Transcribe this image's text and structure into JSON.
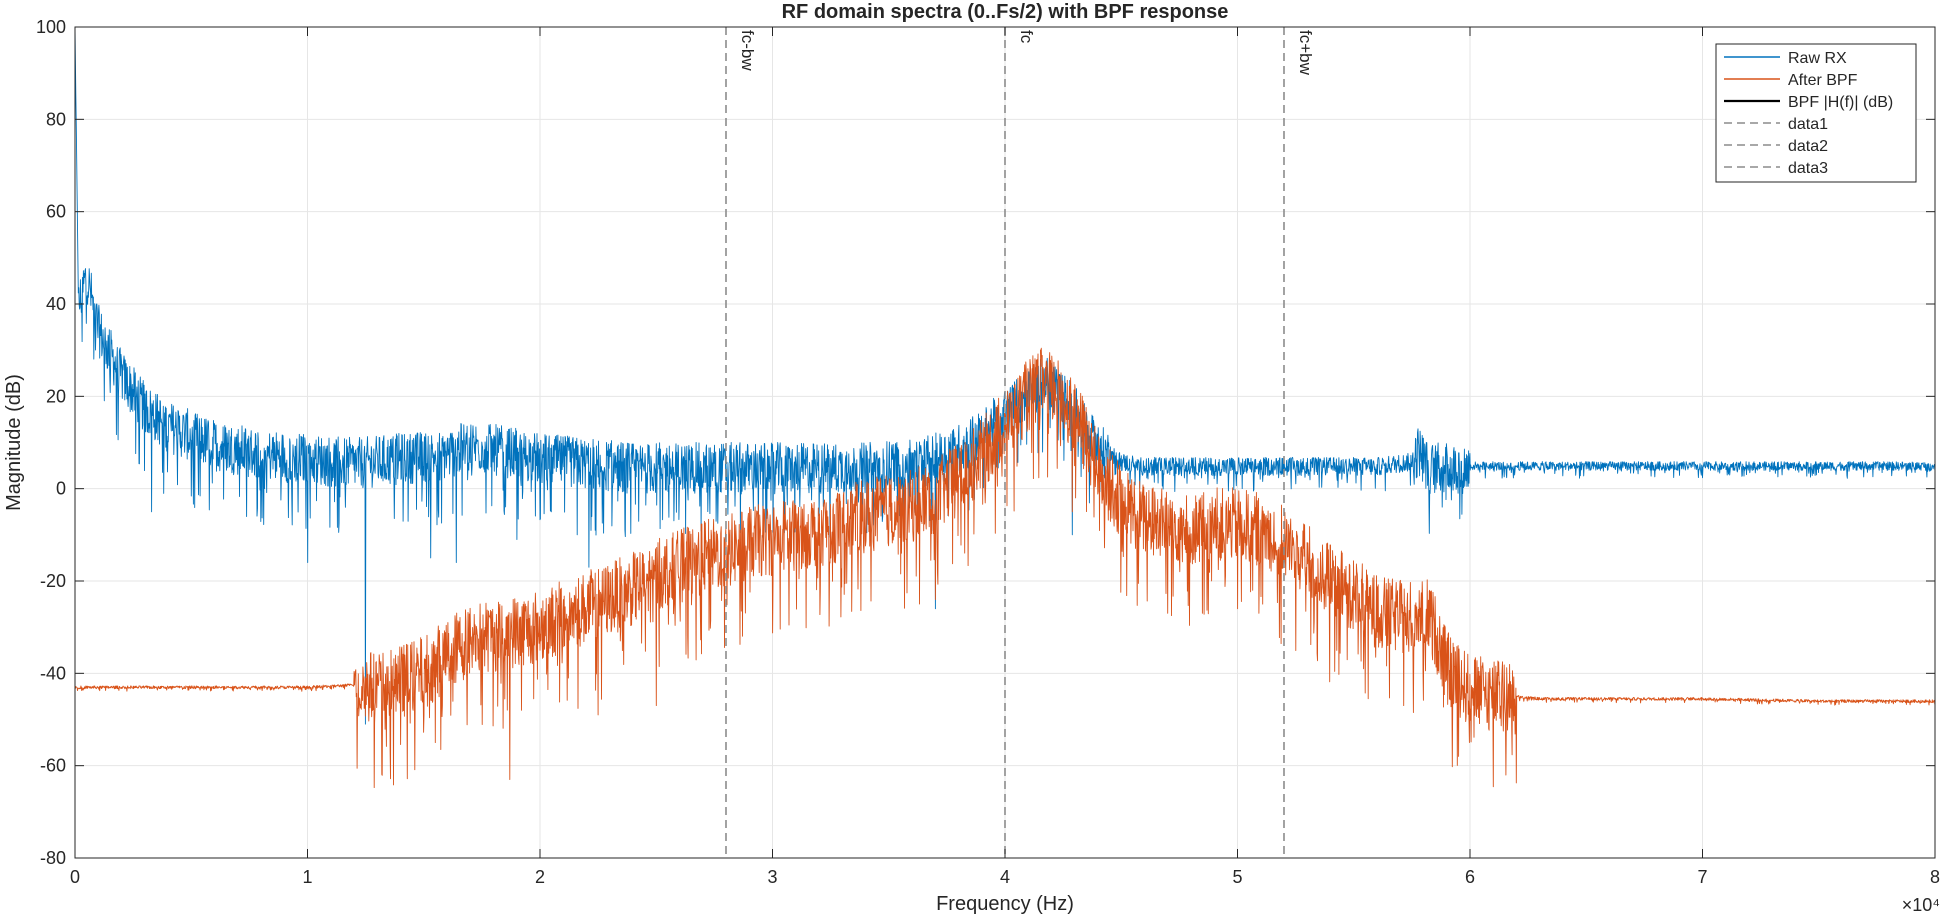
{
  "chart_data": {
    "type": "line",
    "title": "RF domain spectra (0..Fs/2) with BPF response",
    "xlabel": "Frequency (Hz)",
    "ylabel": "Magnitude (dB)",
    "xlim": [
      0,
      80000
    ],
    "ylim": [
      -80,
      100
    ],
    "x_ticks": [
      0,
      10000,
      20000,
      30000,
      40000,
      50000,
      60000,
      70000,
      80000
    ],
    "x_tick_labels": [
      "0",
      "1",
      "2",
      "3",
      "4",
      "5",
      "6",
      "7",
      "8"
    ],
    "x_exponent_label": "×10⁴",
    "y_ticks": [
      -80,
      -60,
      -40,
      -20,
      0,
      20,
      40,
      60,
      80,
      100
    ],
    "y_tick_labels": [
      "-80",
      "-60",
      "-40",
      "-20",
      "0",
      "20",
      "40",
      "60",
      "80",
      "100"
    ],
    "grid": true,
    "legend_position": "top-right",
    "vertical_markers": [
      {
        "name": "data1",
        "x": 28000,
        "label": "fc-bw"
      },
      {
        "name": "data2",
        "x": 40000,
        "label": "fc"
      },
      {
        "name": "data3",
        "x": 52000,
        "label": "fc+bw"
      }
    ],
    "series": [
      {
        "name": "Raw RX",
        "color": "#0072BD",
        "style": "solid",
        "noise_spread_db": 7,
        "points": [
          [
            0,
            100
          ],
          [
            150,
            40
          ],
          [
            500,
            47
          ],
          [
            1000,
            35
          ],
          [
            2000,
            25
          ],
          [
            3000,
            18
          ],
          [
            4000,
            14
          ],
          [
            6000,
            10
          ],
          [
            8000,
            8
          ],
          [
            10000,
            7
          ],
          [
            12000,
            6
          ],
          [
            14000,
            7
          ],
          [
            16000,
            8
          ],
          [
            17000,
            10
          ],
          [
            18000,
            9
          ],
          [
            20000,
            7
          ],
          [
            22000,
            6
          ],
          [
            24000,
            5
          ],
          [
            26000,
            5
          ],
          [
            28000,
            5
          ],
          [
            30000,
            5
          ],
          [
            32000,
            5
          ],
          [
            34000,
            5
          ],
          [
            36000,
            6
          ],
          [
            37000,
            7
          ],
          [
            38000,
            9
          ],
          [
            39000,
            12
          ],
          [
            40000,
            17
          ],
          [
            41000,
            21
          ],
          [
            41700,
            24
          ],
          [
            42500,
            20
          ],
          [
            43000,
            18
          ],
          [
            43500,
            13
          ],
          [
            44000,
            9
          ],
          [
            45000,
            6
          ],
          [
            46000,
            5
          ],
          [
            48000,
            5
          ],
          [
            50000,
            5
          ],
          [
            52000,
            5
          ],
          [
            54000,
            5
          ],
          [
            56000,
            5
          ],
          [
            57500,
            6
          ],
          [
            57800,
            9
          ],
          [
            58200,
            5
          ],
          [
            60000,
            5
          ],
          [
            65000,
            5
          ],
          [
            70000,
            5
          ],
          [
            75000,
            5
          ],
          [
            80000,
            5
          ]
        ],
        "dips": [
          [
            3300,
            -5
          ],
          [
            10000,
            -16
          ],
          [
            12500,
            -51
          ],
          [
            15300,
            -15
          ],
          [
            16400,
            -16
          ],
          [
            19000,
            -11
          ],
          [
            21600,
            -10
          ],
          [
            22100,
            -17
          ],
          [
            37000,
            -26
          ],
          [
            42900,
            -10
          ],
          [
            58800,
            -4
          ]
        ]
      },
      {
        "name": "After BPF",
        "color": "#D95319",
        "style": "solid",
        "noise_spread_db": 10,
        "points": [
          [
            0,
            -43
          ],
          [
            5000,
            -43
          ],
          [
            10000,
            -43
          ],
          [
            12000,
            -42.5
          ],
          [
            13000,
            -42
          ],
          [
            14000,
            -41
          ],
          [
            15000,
            -39
          ],
          [
            16000,
            -35
          ],
          [
            17000,
            -32
          ],
          [
            18000,
            -31
          ],
          [
            19000,
            -30
          ],
          [
            20000,
            -29
          ],
          [
            21000,
            -27
          ],
          [
            22000,
            -25
          ],
          [
            23000,
            -23
          ],
          [
            24000,
            -21
          ],
          [
            25000,
            -18
          ],
          [
            26000,
            -16
          ],
          [
            27000,
            -14
          ],
          [
            28000,
            -13
          ],
          [
            29000,
            -11
          ],
          [
            30000,
            -10
          ],
          [
            31000,
            -9
          ],
          [
            32000,
            -8
          ],
          [
            33000,
            -7
          ],
          [
            34000,
            -5
          ],
          [
            35000,
            -4
          ],
          [
            36000,
            -3
          ],
          [
            37000,
            -1
          ],
          [
            38000,
            3
          ],
          [
            39000,
            8
          ],
          [
            40000,
            15
          ],
          [
            41000,
            21
          ],
          [
            41700,
            24
          ],
          [
            42500,
            20
          ],
          [
            43000,
            17
          ],
          [
            43500,
            11
          ],
          [
            44000,
            5
          ],
          [
            45000,
            -2
          ],
          [
            46000,
            -6
          ],
          [
            47000,
            -7
          ],
          [
            48000,
            -8
          ],
          [
            49000,
            -7
          ],
          [
            50000,
            -7
          ],
          [
            51000,
            -8
          ],
          [
            52000,
            -11
          ],
          [
            53000,
            -15
          ],
          [
            54000,
            -19
          ],
          [
            55000,
            -22
          ],
          [
            56000,
            -26
          ],
          [
            57000,
            -27
          ],
          [
            57500,
            -27
          ],
          [
            58000,
            -25
          ],
          [
            58500,
            -30
          ],
          [
            59000,
            -38
          ],
          [
            60000,
            -43
          ],
          [
            61000,
            -44
          ],
          [
            62000,
            -45
          ],
          [
            63000,
            -45.5
          ],
          [
            65000,
            -45.5
          ],
          [
            70000,
            -45.5
          ],
          [
            75000,
            -46
          ],
          [
            80000,
            -46
          ]
        ],
        "dips": [
          [
            15500,
            -55
          ],
          [
            18700,
            -63
          ],
          [
            19200,
            -48
          ],
          [
            22500,
            -49
          ],
          [
            25000,
            -47
          ],
          [
            37000,
            -24
          ],
          [
            42900,
            -5
          ],
          [
            47000,
            -27
          ],
          [
            48500,
            -27
          ],
          [
            50000,
            -26
          ],
          [
            59500,
            -58
          ]
        ]
      },
      {
        "name": "BPF |H(f)| (dB)",
        "color": "#000000",
        "style": "solid",
        "points": []
      },
      {
        "name": "data1",
        "color": "#8c8c8c",
        "style": "dashed",
        "points": []
      },
      {
        "name": "data2",
        "color": "#8c8c8c",
        "style": "dashed",
        "points": []
      },
      {
        "name": "data3",
        "color": "#8c8c8c",
        "style": "dashed",
        "points": []
      }
    ]
  }
}
